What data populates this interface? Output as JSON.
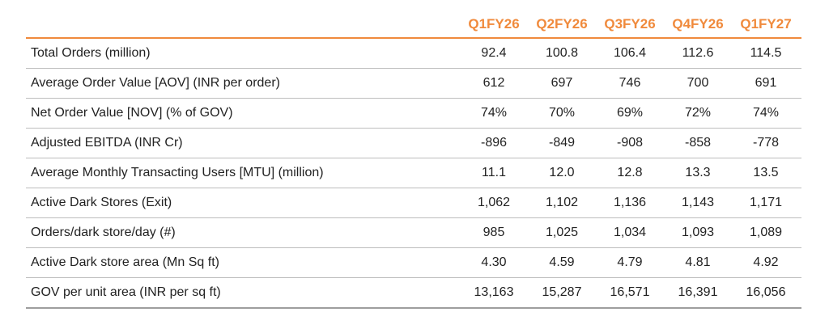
{
  "table": {
    "columns": [
      "Q1FY26",
      "Q2FY26",
      "Q3FY26",
      "Q4FY26",
      "Q1FY27"
    ],
    "rows": [
      {
        "label": "Total Orders (million)",
        "values": [
          "92.4",
          "100.8",
          "106.4",
          "112.6",
          "114.5"
        ]
      },
      {
        "label": "Average Order Value [AOV] (INR per order)",
        "values": [
          "612",
          "697",
          "746",
          "700",
          "691"
        ]
      },
      {
        "label": "Net Order Value [NOV] (% of GOV)",
        "values": [
          "74%",
          "70%",
          "69%",
          "72%",
          "74%"
        ]
      },
      {
        "label": "Adjusted EBITDA (INR Cr)",
        "values": [
          "-896",
          "-849",
          "-908",
          "-858",
          "-778"
        ]
      },
      {
        "label": "Average Monthly Transacting Users [MTU] (million)",
        "values": [
          "11.1",
          "12.0",
          "12.8",
          "13.3",
          "13.5"
        ]
      },
      {
        "label": "Active Dark Stores (Exit)",
        "values": [
          "1,062",
          "1,102",
          "1,136",
          "1,143",
          "1,171"
        ]
      },
      {
        "label": "Orders/dark store/day (#)",
        "values": [
          "985",
          "1,025",
          "1,034",
          "1,093",
          "1,089"
        ]
      },
      {
        "label": "Active Dark store area (Mn Sq ft)",
        "values": [
          "4.30",
          "4.59",
          "4.79",
          "4.81",
          "4.92"
        ]
      },
      {
        "label": "GOV per unit area (INR per sq ft)",
        "values": [
          "13,163",
          "15,287",
          "16,571",
          "16,391",
          "16,056"
        ]
      }
    ]
  },
  "colors": {
    "header_accent": "#f08a3c",
    "row_divider": "#bdbdbd",
    "text": "#222222"
  }
}
